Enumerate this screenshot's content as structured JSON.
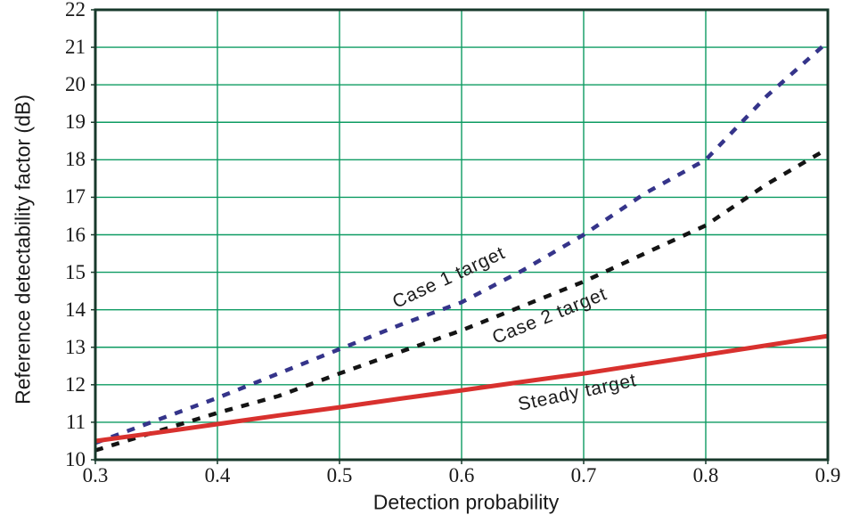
{
  "chart_data": {
    "type": "line",
    "title": "",
    "xlabel": "Detection probability",
    "ylabel": "Reference detectability factor (dB)",
    "xlim": [
      0.3,
      0.9
    ],
    "ylim": [
      10,
      22
    ],
    "grid": true,
    "legend_position": "inline-curve-labels",
    "xticks": [
      0.3,
      0.4,
      0.5,
      0.6,
      0.7,
      0.8,
      0.9
    ],
    "xtick_labels": [
      "0.3",
      "0.4",
      "0.5",
      "0.6",
      "0.7",
      "0.8",
      "0.9"
    ],
    "yticks": [
      10,
      11,
      12,
      13,
      14,
      15,
      16,
      17,
      18,
      19,
      20,
      21,
      22
    ],
    "ytick_labels": [
      "10",
      "11",
      "12",
      "13",
      "14",
      "15",
      "16",
      "17",
      "18",
      "19",
      "20",
      "21",
      "22"
    ],
    "x": [
      0.3,
      0.35,
      0.4,
      0.45,
      0.5,
      0.55,
      0.6,
      0.65,
      0.7,
      0.75,
      0.8,
      0.85,
      0.9
    ],
    "series": [
      {
        "name": "Case 1 target",
        "style": "dashed",
        "color": "#35348a",
        "values": [
          10.45,
          11.05,
          11.65,
          12.3,
          12.95,
          13.6,
          14.2,
          15.05,
          16.0,
          17.1,
          18.0,
          19.7,
          21.15
        ]
      },
      {
        "name": "Case 2 target",
        "style": "dashed",
        "color": "#141414",
        "values": [
          10.25,
          10.75,
          11.25,
          11.7,
          12.3,
          12.88,
          13.45,
          14.1,
          14.75,
          15.5,
          16.25,
          17.35,
          18.3
        ]
      },
      {
        "name": "Steady target",
        "style": "solid",
        "color": "#d8312e",
        "values": [
          10.5,
          10.72,
          10.95,
          11.18,
          11.4,
          11.63,
          11.85,
          12.08,
          12.3,
          12.55,
          12.8,
          13.05,
          13.3
        ]
      }
    ],
    "annotations": [
      {
        "text": "Case 1 target",
        "x": 0.59,
        "y": 14.85,
        "angle": -25
      },
      {
        "text": "Case 2 target",
        "x": 0.672,
        "y": 13.83,
        "angle": -22
      },
      {
        "text": "Steady target",
        "x": 0.695,
        "y": 11.78,
        "angle": -12
      }
    ],
    "colors": {
      "grid": "#0d9b62",
      "frame": "#17392b",
      "text": "#1a1a1a",
      "background": "#ffffff"
    }
  }
}
